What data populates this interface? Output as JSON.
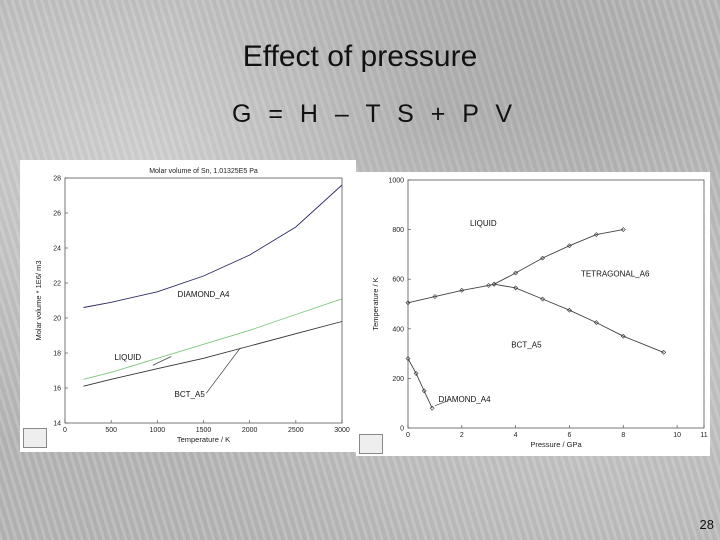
{
  "slide": {
    "title": "Effect of pressure",
    "formula": "G = H – T S + P V",
    "page_number": "28"
  },
  "chart_data": [
    {
      "type": "line",
      "title": "Molar volume of Sn, 1.01325E5 Pa",
      "xlabel": "Temperature / K",
      "ylabel": "Molar volume * 1E6/ m3",
      "xlim": [
        0,
        3000
      ],
      "ylim": [
        14,
        28
      ],
      "xticks": [
        0,
        500,
        1000,
        1500,
        2000,
        2500,
        3000
      ],
      "yticks": [
        14,
        16,
        18,
        20,
        22,
        24,
        26,
        28
      ],
      "series": [
        {
          "name": "DIAMOND_A4",
          "color": "#2b2b66",
          "x": [
            200,
            500,
            1000,
            1500,
            2000,
            2500,
            3000
          ],
          "y": [
            20.6,
            20.9,
            21.5,
            22.4,
            23.6,
            25.2,
            27.6
          ]
        },
        {
          "name": "LIQUID",
          "color": "#7ec87e",
          "x": [
            200,
            500,
            1000,
            1500,
            2000,
            2500,
            3000
          ],
          "y": [
            16.5,
            16.9,
            17.7,
            18.5,
            19.3,
            20.2,
            21.1
          ]
        },
        {
          "name": "BCT_A5",
          "color": "#333333",
          "x": [
            200,
            500,
            1000,
            1500,
            2000,
            2500,
            3000
          ],
          "y": [
            16.1,
            16.5,
            17.1,
            17.7,
            18.4,
            19.1,
            19.8
          ]
        }
      ],
      "annotations": [
        {
          "text": "DIAMOND_A4",
          "x": 1500,
          "y": 21.2
        },
        {
          "text": "LIQUID",
          "x": 680,
          "y": 17.6
        },
        {
          "text": "BCT_A5",
          "x": 1350,
          "y": 15.5
        }
      ]
    },
    {
      "type": "line",
      "title": "",
      "xlabel": "Pressure / GPa",
      "ylabel": "Temperature / K",
      "xlim": [
        0,
        11
      ],
      "ylim": [
        0,
        1000
      ],
      "xticks": [
        0,
        2,
        4,
        6,
        8,
        10,
        11
      ],
      "yticks": [
        0,
        200,
        400,
        600,
        800,
        1000
      ],
      "series": [
        {
          "name": "LIQUID / TETRAGONAL_A6 boundary",
          "color": "#444444",
          "x": [
            0,
            1,
            2,
            3,
            3.2,
            4,
            5,
            6,
            7,
            8
          ],
          "y": [
            505,
            530,
            555,
            575,
            580,
            625,
            685,
            735,
            780,
            800
          ]
        },
        {
          "name": "TETRAGONAL_A6 / BCT_A5 boundary",
          "color": "#444444",
          "x": [
            3.2,
            4,
            5,
            6,
            7,
            8,
            9.5
          ],
          "y": [
            580,
            565,
            520,
            475,
            425,
            370,
            305
          ]
        },
        {
          "name": "DIAMOND_A4 / BCT_A5 boundary",
          "color": "#444444",
          "x": [
            0,
            0.3,
            0.6,
            0.9
          ],
          "y": [
            280,
            220,
            150,
            80
          ]
        }
      ],
      "annotations": [
        {
          "text": "LIQUID",
          "x": 2.8,
          "y": 815
        },
        {
          "text": "TETRAGONAL_A6",
          "x": 7.7,
          "y": 610
        },
        {
          "text": "BCT_A5",
          "x": 4.4,
          "y": 325
        },
        {
          "text": "DIAMOND_A4",
          "x": 2.1,
          "y": 105
        }
      ]
    }
  ]
}
